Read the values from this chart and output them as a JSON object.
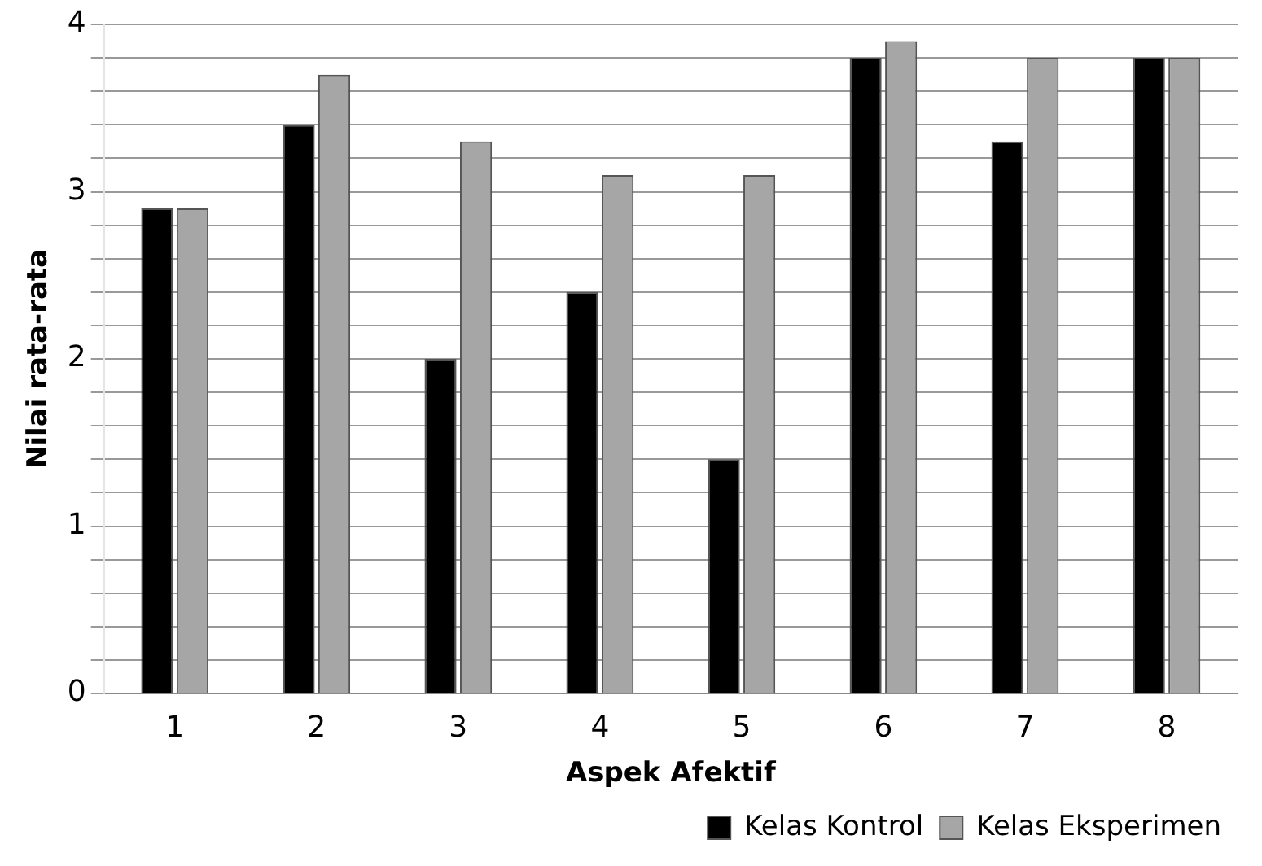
{
  "chart_data": {
    "type": "bar",
    "xlabel": "Aspek Afektif",
    "ylabel": "Nilai rata-rata",
    "categories": [
      "1",
      "2",
      "3",
      "4",
      "5",
      "6",
      "7",
      "8"
    ],
    "series": [
      {
        "name": "Kelas Kontrol",
        "color": "#000000",
        "values": [
          2.9,
          3.4,
          2.0,
          2.4,
          1.4,
          3.8,
          3.3,
          3.8
        ]
      },
      {
        "name": "Kelas Eksperimen",
        "color": "#a6a6a6",
        "values": [
          2.9,
          3.7,
          3.3,
          3.1,
          3.1,
          3.9,
          3.8,
          3.8
        ]
      }
    ],
    "ylim": [
      0,
      4
    ],
    "yticks": [
      0,
      {
        "value": 0.2,
        "label": null
      },
      {
        "value": 0.4,
        "label": null
      },
      {
        "value": 0.6,
        "label": null
      },
      {
        "value": 0.8,
        "label": null
      },
      1,
      {
        "value": 1.2,
        "label": null
      },
      {
        "value": 1.4,
        "label": null
      },
      {
        "value": 1.6,
        "label": null
      },
      {
        "value": 1.8,
        "label": null
      },
      2,
      {
        "value": 2.2,
        "label": null
      },
      {
        "value": 2.4,
        "label": null
      },
      {
        "value": 2.6,
        "label": null
      },
      {
        "value": 2.8,
        "label": null
      },
      3,
      {
        "value": 3.2,
        "label": null
      },
      {
        "value": 3.4,
        "label": null
      },
      {
        "value": 3.6,
        "label": null
      },
      {
        "value": 3.8,
        "label": null
      },
      4
    ],
    "grid": "y",
    "legend": "bottom right"
  }
}
